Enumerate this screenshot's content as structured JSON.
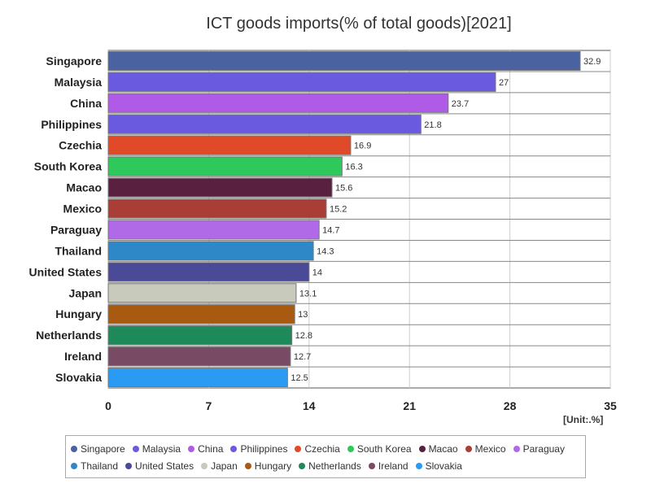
{
  "chart_data": {
    "type": "bar",
    "orientation": "horizontal",
    "title": "ICT goods imports(% of total goods)[2021]",
    "unit_label": "[Unit:.%]",
    "xlim": [
      0,
      35
    ],
    "xticks": [
      0,
      7,
      14,
      21,
      28,
      35
    ],
    "grid": true,
    "legend_position": "bottom",
    "categories": [
      "Singapore",
      "Malaysia",
      "China",
      "Philippines",
      "Czechia",
      "South Korea",
      "Macao",
      "Mexico",
      "Paraguay",
      "Thailand",
      "United States",
      "Japan",
      "Hungary",
      "Netherlands",
      "Ireland",
      "Slovakia"
    ],
    "values": [
      32.9,
      27,
      23.7,
      21.8,
      16.9,
      16.3,
      15.6,
      15.2,
      14.7,
      14.3,
      14,
      13.1,
      13,
      12.8,
      12.7,
      12.5
    ],
    "value_labels": [
      "32.9",
      "27",
      "23.7",
      "21.8",
      "16.9",
      "16.3",
      "15.6",
      "15.2",
      "14.7",
      "14.3",
      "14",
      "13.1",
      "13",
      "12.8",
      "12.7",
      "12.5"
    ],
    "colors": [
      "#4a62a0",
      "#6a5ae0",
      "#b05ae8",
      "#6a5ae0",
      "#e04a28",
      "#2ec95a",
      "#5a2040",
      "#a83e36",
      "#b06ae8",
      "#2e88c8",
      "#4a4a96",
      "#c8cabc",
      "#a85a10",
      "#1e8a5a",
      "#784a64",
      "#2a9af2"
    ]
  }
}
